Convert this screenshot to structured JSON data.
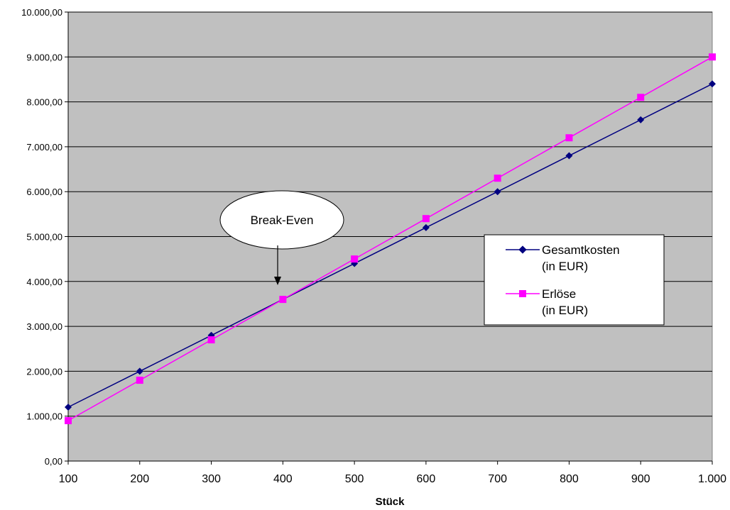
{
  "chart_data": {
    "type": "line",
    "xlabel": "Stück",
    "ylabel": "",
    "x": [
      100,
      200,
      300,
      400,
      500,
      600,
      700,
      800,
      900,
      1000
    ],
    "x_tick_labels": [
      "100",
      "200",
      "300",
      "400",
      "500",
      "600",
      "700",
      "800",
      "900",
      "1.000"
    ],
    "ylim": [
      0,
      10000
    ],
    "y_ticks": [
      0,
      1000,
      2000,
      3000,
      4000,
      5000,
      6000,
      7000,
      8000,
      9000,
      10000
    ],
    "y_tick_labels": [
      "0,00",
      "1.000,00",
      "2.000,00",
      "3.000,00",
      "4.000,00",
      "5.000,00",
      "6.000,00",
      "7.000,00",
      "8.000,00",
      "9.000,00",
      "10.000,00"
    ],
    "grid": "horizontal",
    "plot_background": "#c0c0c0",
    "series": [
      {
        "name_line1": "Gesamtkosten",
        "name_line2": "(in EUR)",
        "color": "#000080",
        "marker": "diamond",
        "values": [
          1200,
          2000,
          2800,
          3600,
          4400,
          5200,
          6000,
          6800,
          7600,
          8400
        ]
      },
      {
        "name_line1": "Erlöse",
        "name_line2": "(in EUR)",
        "color": "#ff00ff",
        "marker": "square",
        "values": [
          900,
          1800,
          2700,
          3600,
          4500,
          5400,
          6300,
          7200,
          8100,
          9000
        ]
      }
    ],
    "legend_placement": "right",
    "annotation": {
      "text": "Break-Even",
      "x": 400,
      "y": 3600
    }
  }
}
